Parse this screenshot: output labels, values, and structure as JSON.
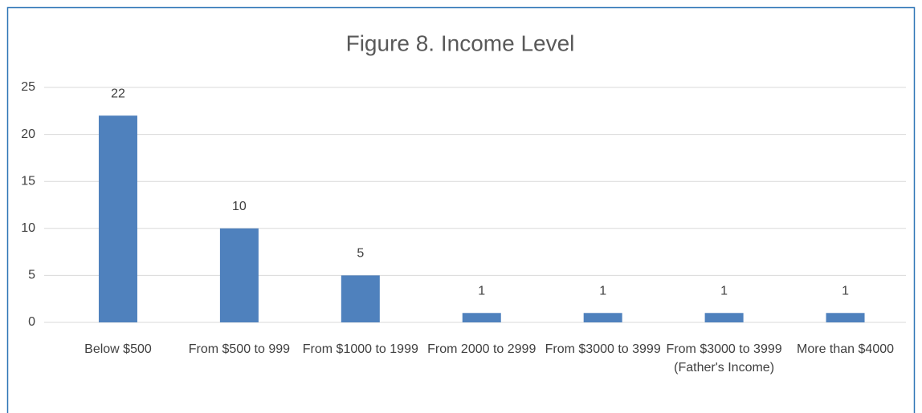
{
  "chart_data": {
    "type": "bar",
    "title": "Figure 8. Income Level",
    "categories": [
      "Below $500",
      "From $500 to 999",
      "From $1000 to 1999",
      "From 2000 to 2999",
      "From $3000 to 3999",
      "From $3000 to 3999 (Father's Income)",
      "More than $4000"
    ],
    "values": [
      22,
      10,
      5,
      1,
      1,
      1,
      1
    ],
    "color": "#4f81bd",
    "ylim": [
      0,
      25
    ],
    "yticks": [
      0,
      5,
      10,
      15,
      20,
      25
    ],
    "grid": true
  }
}
